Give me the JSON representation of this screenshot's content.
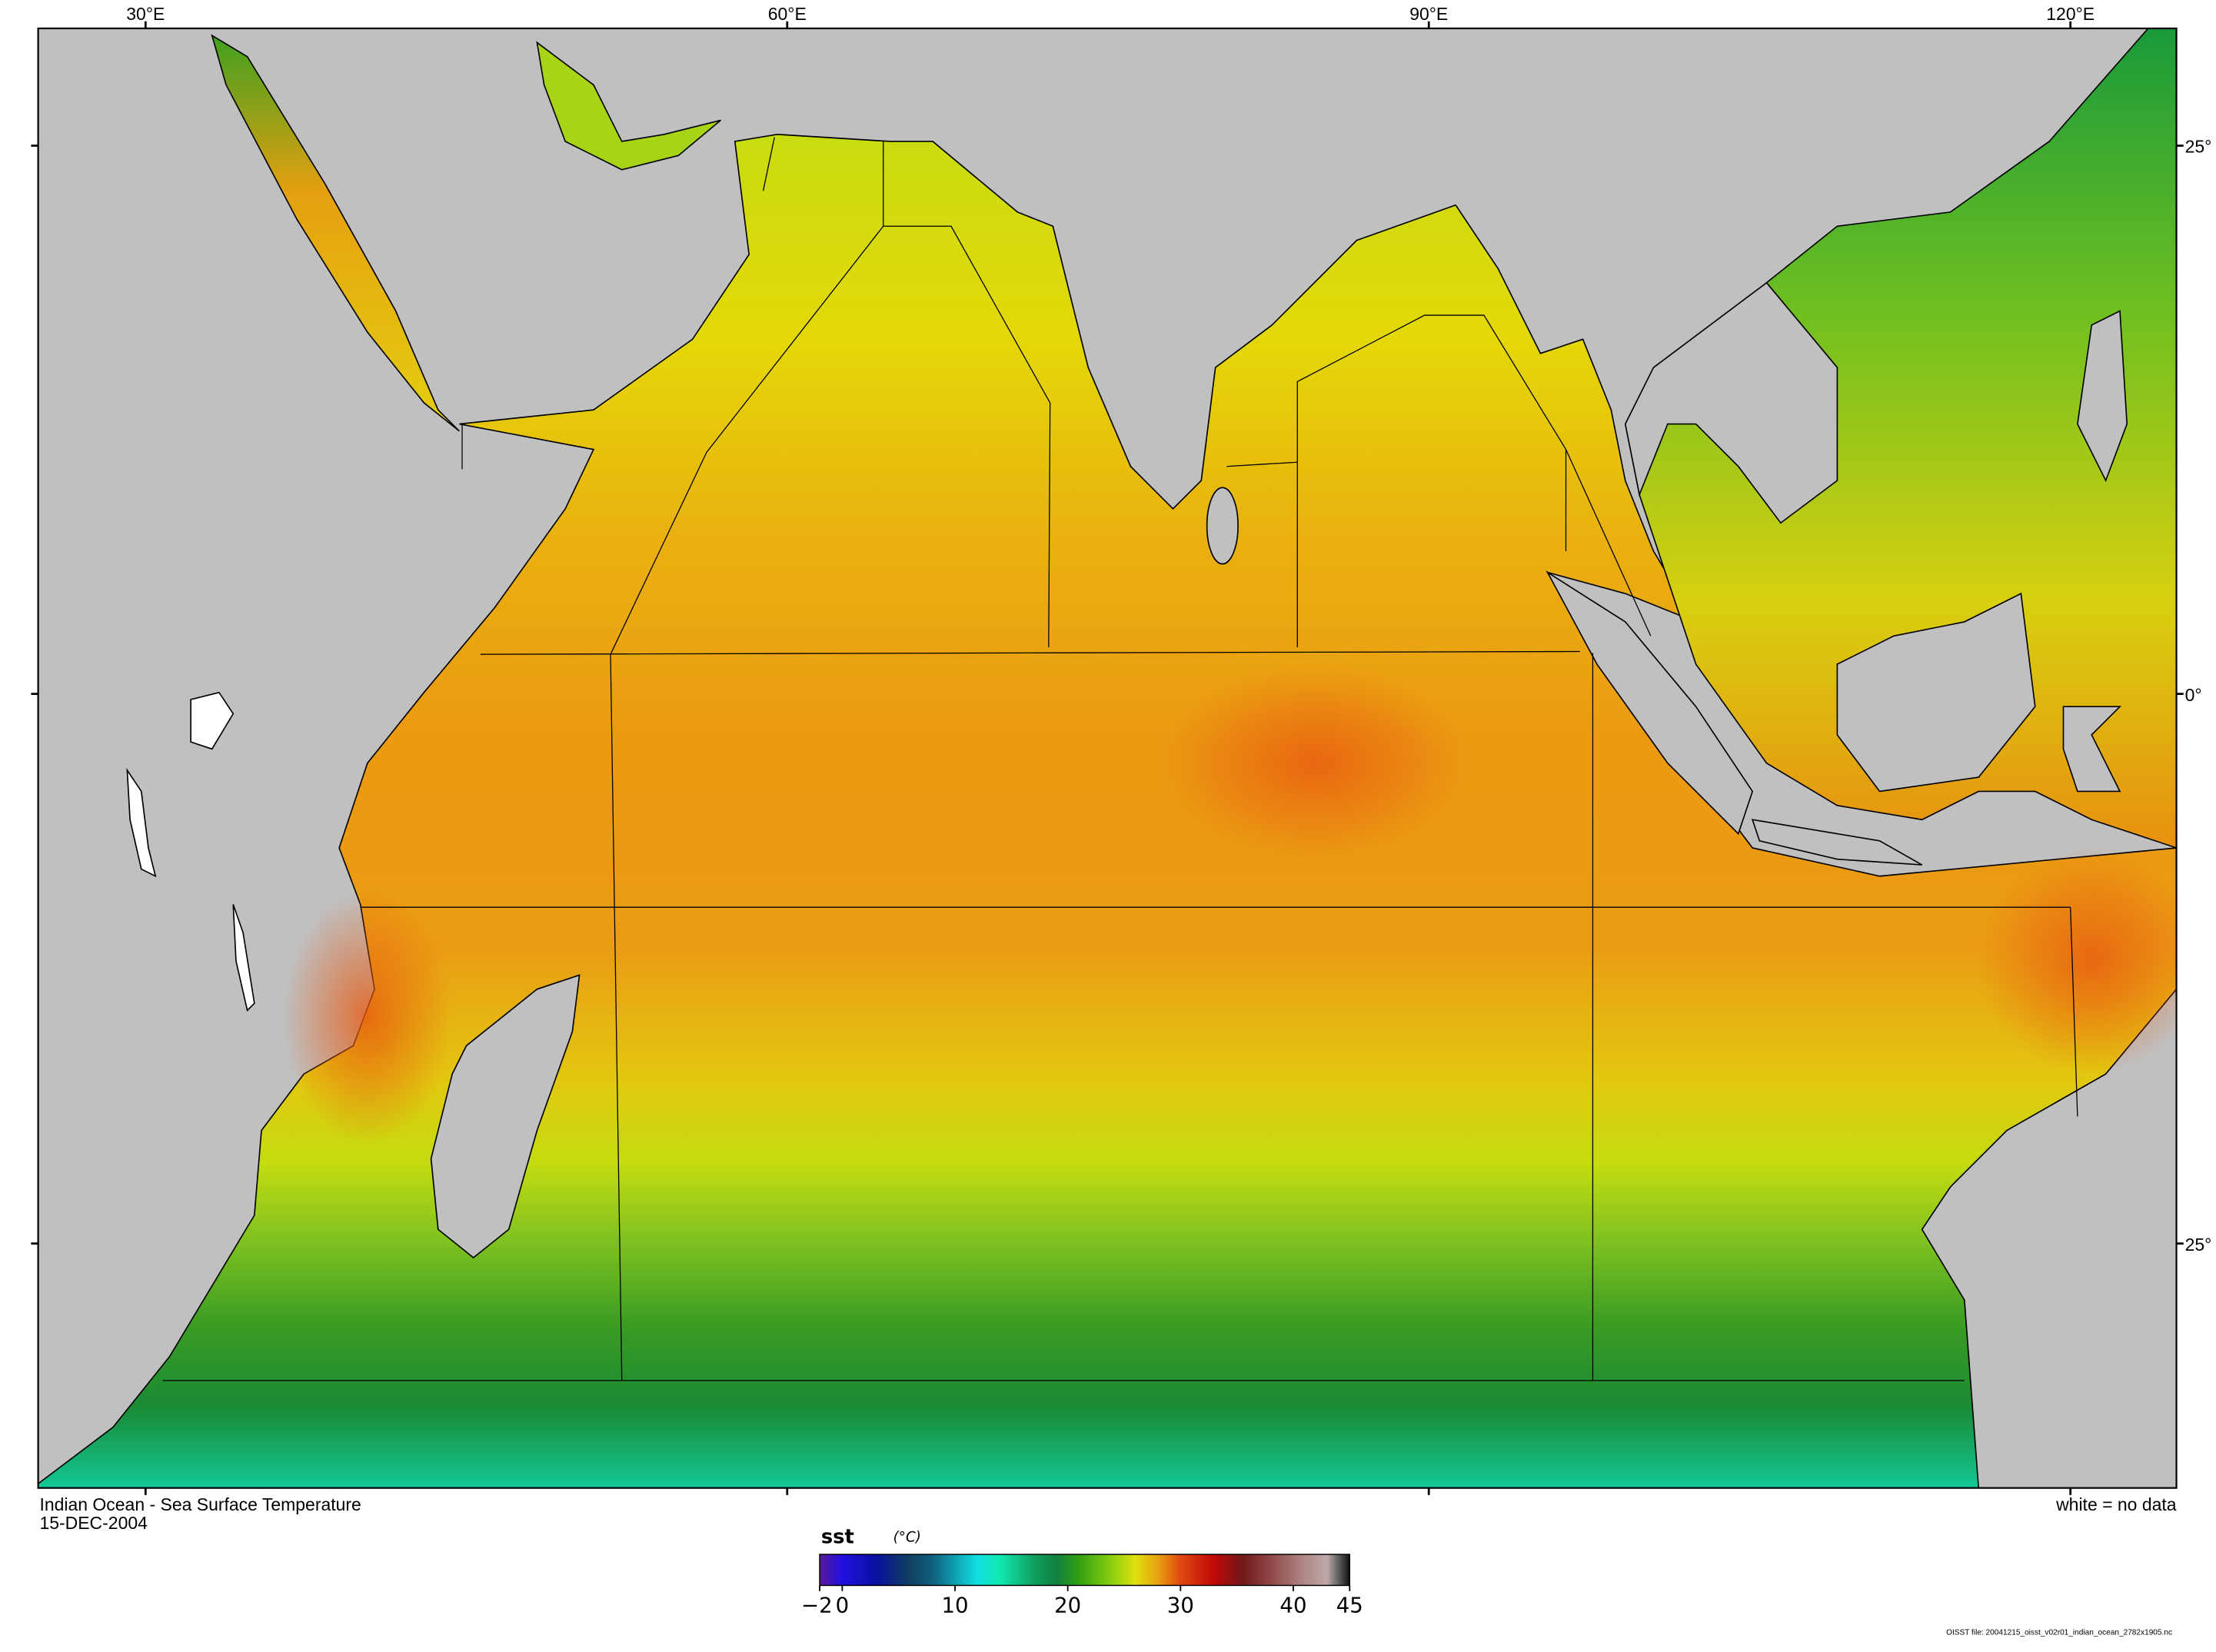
{
  "map": {
    "title": "Indian Ocean - Sea Surface Temperature",
    "date": "15-DEC-2004",
    "no_data_note": "white = no data",
    "file_note": "OISST file: 20041215_oisst_v02r01_indian_ocean_2782x1905.nc",
    "lon_labels": [
      "30°E",
      "60°E",
      "90°E",
      "120°E"
    ],
    "lat_labels": [
      "25°",
      "0°",
      "25°"
    ],
    "colors": {
      "land": "#c0c0c0",
      "no_data": "#ffffff",
      "outline": "#000000"
    }
  },
  "colorbar": {
    "variable": "sst",
    "unit": "(°C)",
    "range": [
      -2,
      45
    ],
    "tick_labels": [
      "−2",
      "0",
      "10",
      "20",
      "30",
      "40",
      "45"
    ],
    "tick_values": [
      -2,
      0,
      10,
      20,
      30,
      40,
      45
    ],
    "stops": [
      {
        "v": -2,
        "c": "#5a1a9a"
      },
      {
        "v": 0,
        "c": "#2010e0"
      },
      {
        "v": 3,
        "c": "#0a10a0"
      },
      {
        "v": 6,
        "c": "#104060"
      },
      {
        "v": 8,
        "c": "#106080"
      },
      {
        "v": 10,
        "c": "#10a0b0"
      },
      {
        "v": 12,
        "c": "#10e0e0"
      },
      {
        "v": 14,
        "c": "#10e8b0"
      },
      {
        "v": 17,
        "c": "#10a060"
      },
      {
        "v": 19,
        "c": "#108040"
      },
      {
        "v": 21,
        "c": "#30a010"
      },
      {
        "v": 24,
        "c": "#90d010"
      },
      {
        "v": 26,
        "c": "#e0e010"
      },
      {
        "v": 28,
        "c": "#e8a010"
      },
      {
        "v": 30,
        "c": "#e04810"
      },
      {
        "v": 33,
        "c": "#c00808"
      },
      {
        "v": 35.5,
        "c": "#701818"
      },
      {
        "v": 38,
        "c": "#904848"
      },
      {
        "v": 41,
        "c": "#b08888"
      },
      {
        "v": 43,
        "c": "#c0a8a8"
      },
      {
        "v": 44,
        "c": "#606060"
      },
      {
        "v": 45,
        "c": "#101010"
      }
    ]
  }
}
